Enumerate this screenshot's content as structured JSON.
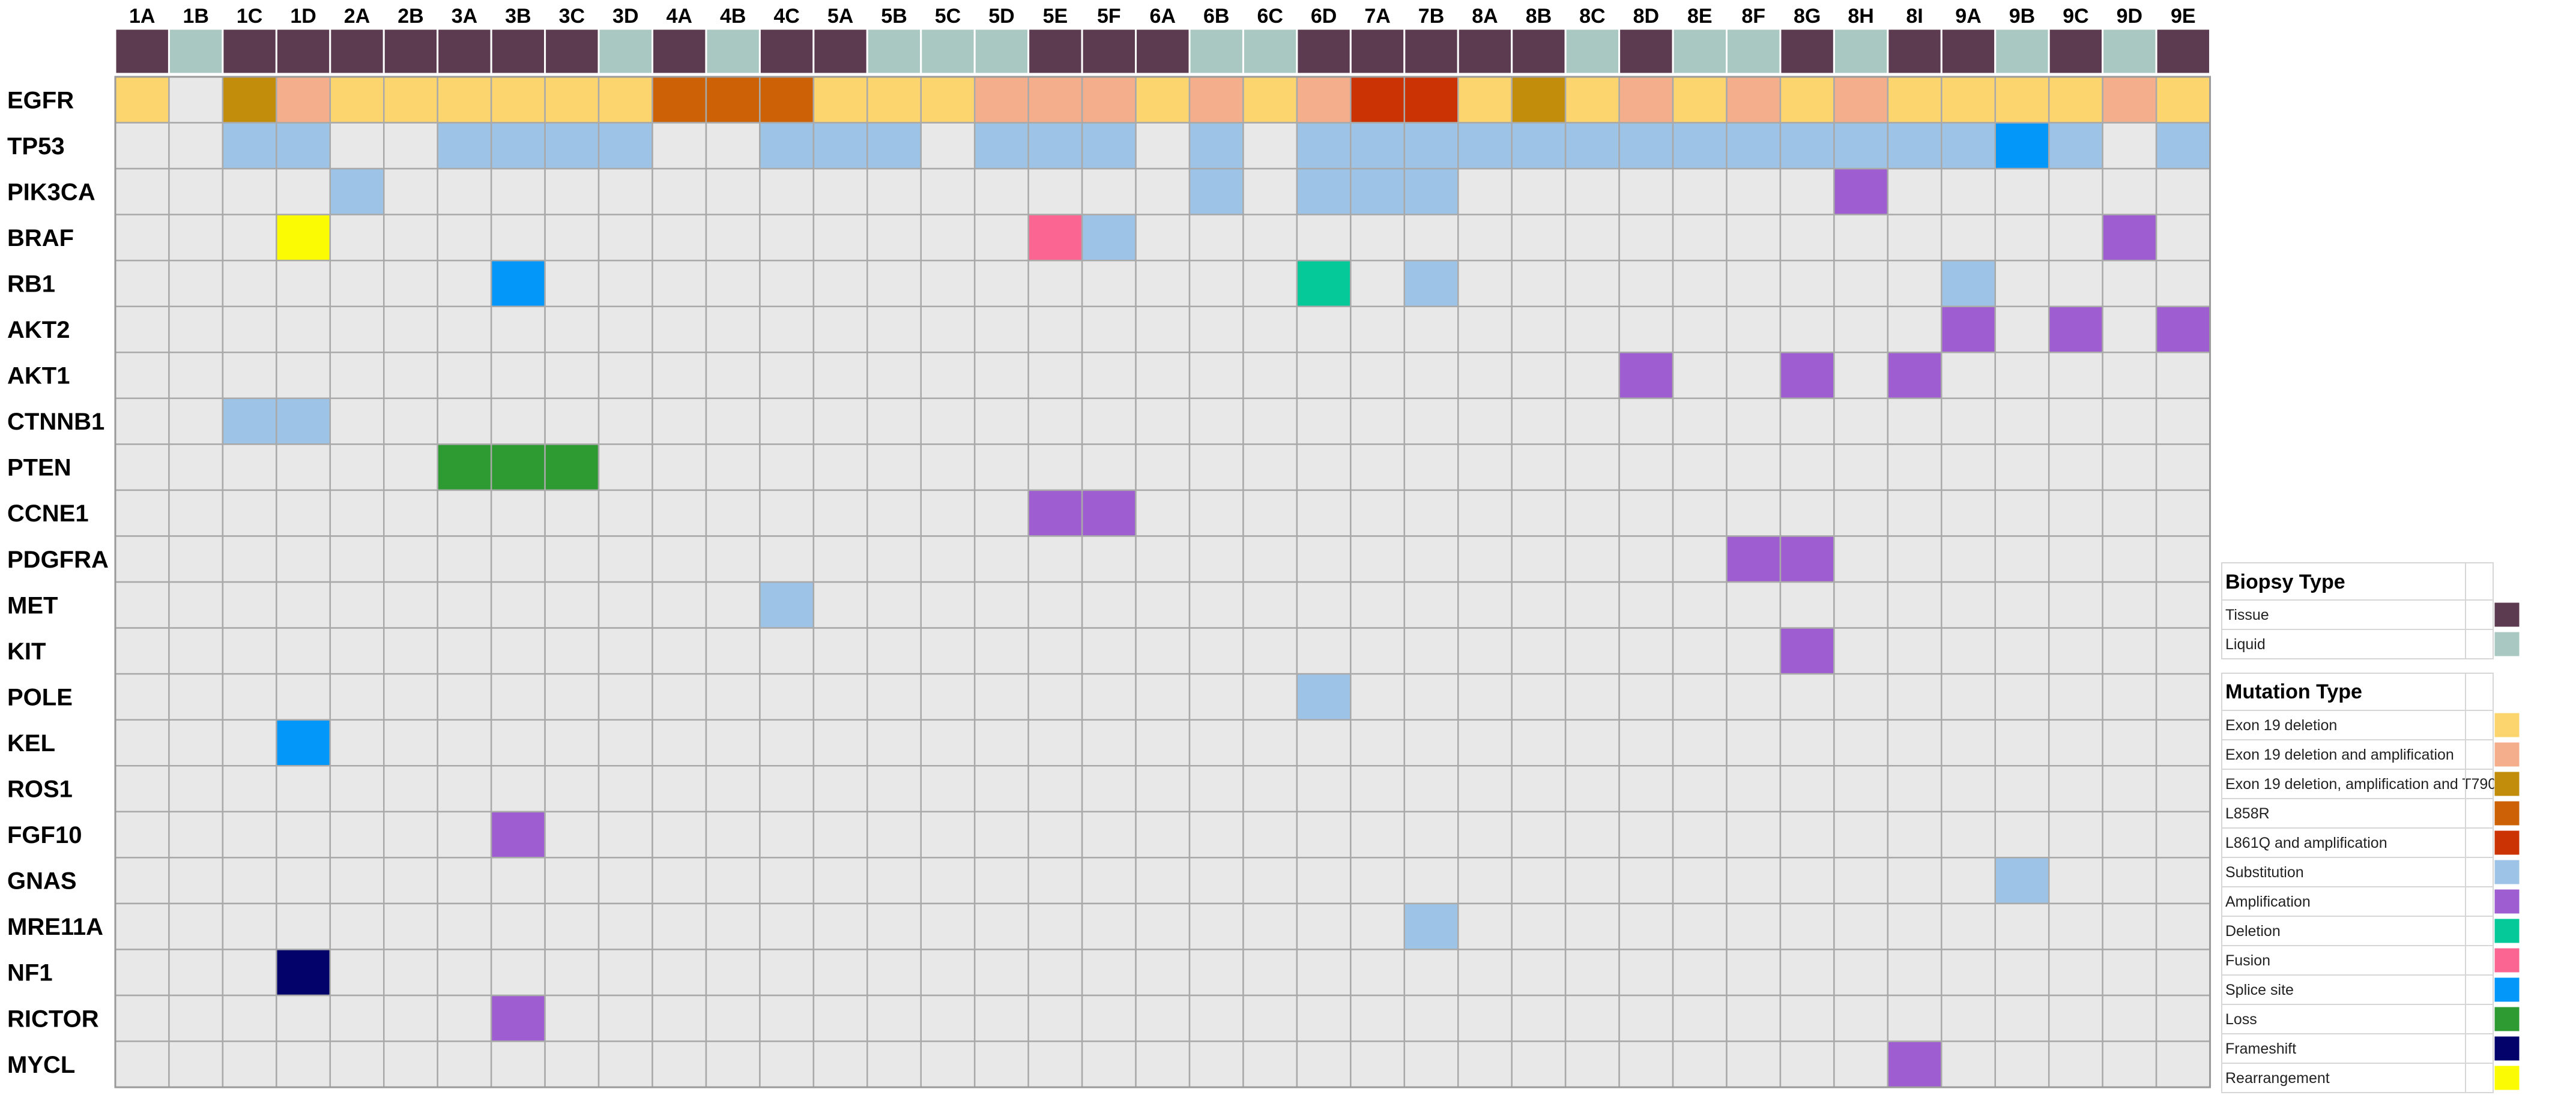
{
  "chart_data": {
    "type": "heatmap",
    "title": "",
    "columns": [
      "1A",
      "1B",
      "1C",
      "1D",
      "2A",
      "2B",
      "3A",
      "3B",
      "3C",
      "3D",
      "4A",
      "4B",
      "4C",
      "5A",
      "5B",
      "5C",
      "5D",
      "5E",
      "5F",
      "6A",
      "6B",
      "6C",
      "6D",
      "7A",
      "7B",
      "8A",
      "8B",
      "8C",
      "8D",
      "8E",
      "8F",
      "8G",
      "8H",
      "8I",
      "9A",
      "9B",
      "9C",
      "9D",
      "9E"
    ],
    "biopsy_type": [
      "Tissue",
      "Liquid",
      "Tissue",
      "Tissue",
      "Tissue",
      "Tissue",
      "Tissue",
      "Tissue",
      "Tissue",
      "Liquid",
      "Tissue",
      "Liquid",
      "Tissue",
      "Tissue",
      "Liquid",
      "Liquid",
      "Liquid",
      "Tissue",
      "Tissue",
      "Tissue",
      "Liquid",
      "Liquid",
      "Tissue",
      "Tissue",
      "Tissue",
      "Tissue",
      "Tissue",
      "Liquid",
      "Tissue",
      "Liquid",
      "Liquid",
      "Tissue",
      "Liquid",
      "Tissue",
      "Tissue",
      "Liquid",
      "Tissue",
      "Liquid",
      "Tissue"
    ],
    "rows": [
      "EGFR",
      "TP53",
      "PIK3CA",
      "BRAF",
      "RB1",
      "AKT2",
      "AKT1",
      "CTNNB1",
      "PTEN",
      "CCNE1",
      "PDGFRA",
      "MET",
      "KIT",
      "POLE",
      "KEL",
      "ROS1",
      "FGF10",
      "GNAS",
      "MRE11A",
      "NF1",
      "RICTOR",
      "MYCL"
    ],
    "cells": [
      [
        "Exon 19 deletion",
        "",
        "Exon 19 deletion, amplification and T790M",
        "Exon 19 deletion and amplification",
        "Exon 19 deletion",
        "Exon 19 deletion",
        "Exon 19 deletion",
        "Exon 19 deletion",
        "Exon 19 deletion",
        "Exon 19 deletion",
        "L858R",
        "L858R",
        "L858R",
        "Exon 19 deletion",
        "Exon 19 deletion",
        "Exon 19 deletion",
        "Exon 19 deletion and amplification",
        "Exon 19 deletion and amplification",
        "Exon 19 deletion and amplification",
        "Exon 19 deletion",
        "Exon 19 deletion and amplification",
        "Exon 19 deletion",
        "Exon 19 deletion and amplification",
        "L861Q and amplification",
        "L861Q and amplification",
        "Exon 19 deletion",
        "Exon 19 deletion, amplification and T790M",
        "Exon 19 deletion",
        "Exon 19 deletion and amplification",
        "Exon 19 deletion",
        "Exon 19 deletion and amplification",
        "Exon 19 deletion",
        "Exon 19 deletion and amplification",
        "Exon 19 deletion",
        "Exon 19 deletion",
        "Exon 19 deletion",
        "Exon 19 deletion",
        "Exon 19 deletion and amplification",
        "Exon 19 deletion"
      ],
      [
        "",
        "",
        "Substitution",
        "Substitution",
        "",
        "",
        "Substitution",
        "Substitution",
        "Substitution",
        "Substitution",
        "",
        "",
        "Substitution",
        "Substitution",
        "Substitution",
        "",
        "Substitution",
        "Substitution",
        "Substitution",
        "",
        "Substitution",
        "",
        "Substitution",
        "Substitution",
        "Substitution",
        "Substitution",
        "Substitution",
        "Substitution",
        "Substitution",
        "Substitution",
        "Substitution",
        "Substitution",
        "Substitution",
        "Substitution",
        "Substitution",
        "Splice site",
        "Substitution",
        "",
        "Substitution"
      ],
      [
        "",
        "",
        "",
        "",
        "Substitution",
        "",
        "",
        "",
        "",
        "",
        "",
        "",
        "",
        "",
        "",
        "",
        "",
        "",
        "",
        "",
        "Substitution",
        "",
        "Substitution",
        "Substitution",
        "Substitution",
        "",
        "",
        "",
        "",
        "",
        "",
        "",
        "Amplification",
        "",
        "",
        "",
        "",
        "",
        ""
      ],
      [
        "",
        "",
        "",
        "Rearrangement",
        "",
        "",
        "",
        "",
        "",
        "",
        "",
        "",
        "",
        "",
        "",
        "",
        "",
        "Fusion",
        "Substitution",
        "",
        "",
        "",
        "",
        "",
        "",
        "",
        "",
        "",
        "",
        "",
        "",
        "",
        "",
        "",
        "",
        "",
        "",
        "Amplification",
        ""
      ],
      [
        "",
        "",
        "",
        "",
        "",
        "",
        "",
        "Splice site",
        "",
        "",
        "",
        "",
        "",
        "",
        "",
        "",
        "",
        "",
        "",
        "",
        "",
        "",
        "Deletion",
        "",
        "Substitution",
        "",
        "",
        "",
        "",
        "",
        "",
        "",
        "",
        "",
        "Substitution",
        "",
        "",
        "",
        ""
      ],
      [
        "",
        "",
        "",
        "",
        "",
        "",
        "",
        "",
        "",
        "",
        "",
        "",
        "",
        "",
        "",
        "",
        "",
        "",
        "",
        "",
        "",
        "",
        "",
        "",
        "",
        "",
        "",
        "",
        "",
        "",
        "",
        "",
        "",
        "",
        "Amplification",
        "",
        "Amplification",
        "",
        "Amplification"
      ],
      [
        "",
        "",
        "",
        "",
        "",
        "",
        "",
        "",
        "",
        "",
        "",
        "",
        "",
        "",
        "",
        "",
        "",
        "",
        "",
        "",
        "",
        "",
        "",
        "",
        "",
        "",
        "",
        "",
        "Amplification",
        "",
        "",
        "Amplification",
        "",
        "Amplification",
        "",
        "",
        "",
        "",
        ""
      ],
      [
        "",
        "",
        "Substitution",
        "Substitution",
        "",
        "",
        "",
        "",
        "",
        "",
        "",
        "",
        "",
        "",
        "",
        "",
        "",
        "",
        "",
        "",
        "",
        "",
        "",
        "",
        "",
        "",
        "",
        "",
        "",
        "",
        "",
        "",
        "",
        "",
        "",
        "",
        "",
        "",
        ""
      ],
      [
        "",
        "",
        "",
        "",
        "",
        "",
        "Loss",
        "Loss",
        "Loss",
        "",
        "",
        "",
        "",
        "",
        "",
        "",
        "",
        "",
        "",
        "",
        "",
        "",
        "",
        "",
        "",
        "",
        "",
        "",
        "",
        "",
        "",
        "",
        "",
        "",
        "",
        "",
        "",
        "",
        ""
      ],
      [
        "",
        "",
        "",
        "",
        "",
        "",
        "",
        "",
        "",
        "",
        "",
        "",
        "",
        "",
        "",
        "",
        "",
        "Amplification",
        "Amplification",
        "",
        "",
        "",
        "",
        "",
        "",
        "",
        "",
        "",
        "",
        "",
        "",
        "",
        "",
        "",
        "",
        "",
        "",
        "",
        ""
      ],
      [
        "",
        "",
        "",
        "",
        "",
        "",
        "",
        "",
        "",
        "",
        "",
        "",
        "",
        "",
        "",
        "",
        "",
        "",
        "",
        "",
        "",
        "",
        "",
        "",
        "",
        "",
        "",
        "",
        "",
        "",
        "Amplification",
        "Amplification",
        "",
        "",
        "",
        "",
        "",
        "",
        ""
      ],
      [
        "",
        "",
        "",
        "",
        "",
        "",
        "",
        "",
        "",
        "",
        "",
        "",
        "Substitution",
        "",
        "",
        "",
        "",
        "",
        "",
        "",
        "",
        "",
        "",
        "",
        "",
        "",
        "",
        "",
        "",
        "",
        "",
        "",
        "",
        "",
        "",
        "",
        "",
        "",
        ""
      ],
      [
        "",
        "",
        "",
        "",
        "",
        "",
        "",
        "",
        "",
        "",
        "",
        "",
        "",
        "",
        "",
        "",
        "",
        "",
        "",
        "",
        "",
        "",
        "",
        "",
        "",
        "",
        "",
        "",
        "",
        "",
        "",
        "Amplification",
        "",
        "",
        "",
        "",
        "",
        "",
        ""
      ],
      [
        "",
        "",
        "",
        "",
        "",
        "",
        "",
        "",
        "",
        "",
        "",
        "",
        "",
        "",
        "",
        "",
        "",
        "",
        "",
        "",
        "",
        "",
        "Substitution",
        "",
        "",
        "",
        "",
        "",
        "",
        "",
        "",
        "",
        "",
        "",
        "",
        "",
        "",
        "",
        ""
      ],
      [
        "",
        "",
        "",
        "Splice site",
        "",
        "",
        "",
        "",
        "",
        "",
        "",
        "",
        "",
        "",
        "",
        "",
        "",
        "",
        "",
        "",
        "",
        "",
        "",
        "",
        "",
        "",
        "",
        "",
        "",
        "",
        "",
        "",
        "",
        "",
        "",
        "",
        "",
        "",
        ""
      ],
      [
        "",
        "",
        "",
        "",
        "",
        "",
        "",
        "",
        "",
        "",
        "",
        "",
        "",
        "",
        "",
        "",
        "",
        "",
        "",
        "",
        "",
        "",
        "",
        "",
        "",
        "",
        "",
        "",
        "",
        "",
        "",
        "",
        "",
        "",
        "",
        "",
        "",
        "",
        ""
      ],
      [
        "",
        "",
        "",
        "",
        "",
        "",
        "",
        "Amplification",
        "",
        "",
        "",
        "",
        "",
        "",
        "",
        "",
        "",
        "",
        "",
        "",
        "",
        "",
        "",
        "",
        "",
        "",
        "",
        "",
        "",
        "",
        "",
        "",
        "",
        "",
        "",
        "",
        "",
        "",
        ""
      ],
      [
        "",
        "",
        "",
        "",
        "",
        "",
        "",
        "",
        "",
        "",
        "",
        "",
        "",
        "",
        "",
        "",
        "",
        "",
        "",
        "",
        "",
        "",
        "",
        "",
        "",
        "",
        "",
        "",
        "",
        "",
        "",
        "",
        "",
        "",
        "",
        "Substitution",
        "",
        "",
        ""
      ],
      [
        "",
        "",
        "",
        "",
        "",
        "",
        "",
        "",
        "",
        "",
        "",
        "",
        "",
        "",
        "",
        "",
        "",
        "",
        "",
        "",
        "",
        "",
        "",
        "",
        "Substitution",
        "",
        "",
        "",
        "",
        "",
        "",
        "",
        "",
        "",
        "",
        "",
        "",
        "",
        ""
      ],
      [
        "",
        "",
        "",
        "Frameshift",
        "",
        "",
        "",
        "",
        "",
        "",
        "",
        "",
        "",
        "",
        "",
        "",
        "",
        "",
        "",
        "",
        "",
        "",
        "",
        "",
        "",
        "",
        "",
        "",
        "",
        "",
        "",
        "",
        "",
        "",
        "",
        "",
        "",
        "",
        ""
      ],
      [
        "",
        "",
        "",
        "",
        "",
        "",
        "",
        "Amplification",
        "",
        "",
        "",
        "",
        "",
        "",
        "",
        "",
        "",
        "",
        "",
        "",
        "",
        "",
        "",
        "",
        "",
        "",
        "",
        "",
        "",
        "",
        "",
        "",
        "",
        "",
        "",
        "",
        "",
        "",
        ""
      ],
      [
        "",
        "",
        "",
        "",
        "",
        "",
        "",
        "",
        "",
        "",
        "",
        "",
        "",
        "",
        "",
        "",
        "",
        "",
        "",
        "",
        "",
        "",
        "",
        "",
        "",
        "",
        "",
        "",
        "",
        "",
        "",
        "",
        "",
        "Amplification",
        "",
        "",
        "",
        "",
        ""
      ]
    ],
    "legend": {
      "biopsy_title": "Biopsy Type",
      "biopsy_items": [
        {
          "label": "Tissue",
          "color": "#5c3a4f"
        },
        {
          "label": "Liquid",
          "color": "#aac8c2"
        }
      ],
      "mutation_title": "Mutation Type",
      "mutation_items": [
        {
          "label": "Exon 19 deletion",
          "color": "#fdd56e"
        },
        {
          "label": "Exon 19 deletion and amplification",
          "color": "#f5ae8c"
        },
        {
          "label": "Exon 19 deletion, amplification and T790M",
          "color": "#c28d0a"
        },
        {
          "label": "L858R",
          "color": "#cc6106"
        },
        {
          "label": "L861Q and amplification",
          "color": "#cc3304"
        },
        {
          "label": "Substitution",
          "color": "#9dc3e6"
        },
        {
          "label": "Amplification",
          "color": "#9e5dd1"
        },
        {
          "label": "Deletion",
          "color": "#06c99a"
        },
        {
          "label": "Fusion",
          "color": "#fa6592"
        },
        {
          "label": "Splice site",
          "color": "#0497fa"
        },
        {
          "label": "Loss",
          "color": "#2d9a32"
        },
        {
          "label": "Frameshift",
          "color": "#02026a"
        },
        {
          "label": "Rearrangement",
          "color": "#fbfb03"
        }
      ]
    },
    "empty_color": "#e8e8e8",
    "grid_color": "#a9a9a9"
  }
}
